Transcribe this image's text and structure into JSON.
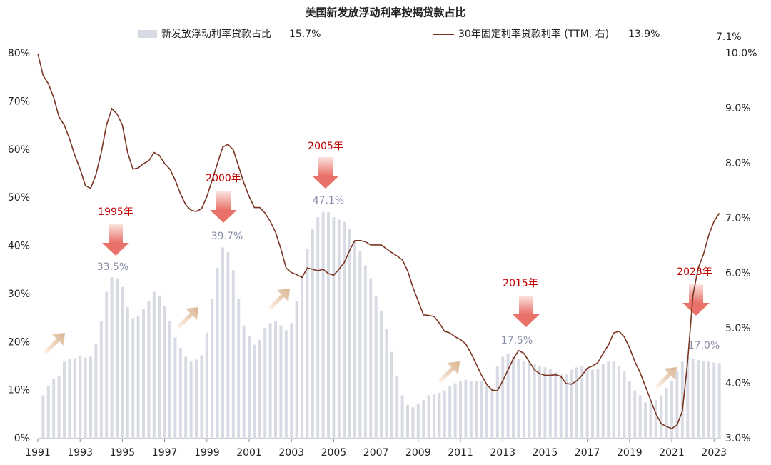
{
  "chart_data": {
    "type": "bar_line",
    "title": "美国新发放浮动利率按揭贷款占比",
    "legend_extra": [
      "15.7%",
      "13.9%",
      "7.1%"
    ],
    "annotations": [
      "1995年",
      "33.5%",
      "2000年",
      "39.7%",
      "2005年",
      "47.1%",
      "2015年",
      "17.5%",
      "2023年",
      "17.0%"
    ],
    "x": [
      1991,
      1991.25,
      1991.5,
      1991.75,
      1992,
      1992.25,
      1992.5,
      1992.75,
      1993,
      1993.25,
      1993.5,
      1993.75,
      1994,
      1994.25,
      1994.5,
      1994.75,
      1995,
      1995.25,
      1995.5,
      1995.75,
      1996,
      1996.25,
      1996.5,
      1996.75,
      1997,
      1997.25,
      1997.5,
      1997.75,
      1998,
      1998.25,
      1998.5,
      1998.75,
      1999,
      1999.25,
      1999.5,
      1999.75,
      2000,
      2000.25,
      2000.5,
      2000.75,
      2001,
      2001.25,
      2001.5,
      2001.75,
      2002,
      2002.25,
      2002.5,
      2002.75,
      2003,
      2003.25,
      2003.5,
      2003.75,
      2004,
      2004.25,
      2004.5,
      2004.75,
      2005,
      2005.25,
      2005.5,
      2005.75,
      2006,
      2006.25,
      2006.5,
      2006.75,
      2007,
      2007.25,
      2007.5,
      2007.75,
      2008,
      2008.25,
      2008.5,
      2008.75,
      2009,
      2009.25,
      2009.5,
      2009.75,
      2010,
      2010.25,
      2010.5,
      2010.75,
      2011,
      2011.25,
      2011.5,
      2011.75,
      2012,
      2012.25,
      2012.5,
      2012.75,
      2013,
      2013.25,
      2013.5,
      2013.75,
      2014,
      2014.25,
      2014.5,
      2014.75,
      2015,
      2015.25,
      2015.5,
      2015.75,
      2016,
      2016.25,
      2016.5,
      2016.75,
      2017,
      2017.25,
      2017.5,
      2017.75,
      2018,
      2018.25,
      2018.5,
      2018.75,
      2019,
      2019.25,
      2019.5,
      2019.75,
      2020,
      2020.25,
      2020.5,
      2020.75,
      2021,
      2021.25,
      2021.5,
      2021.75,
      2022,
      2022.25,
      2022.5,
      2022.75,
      2023,
      2023.25
    ],
    "series": [
      {
        "name": "新发放浮动利率贷款占比",
        "type": "bar",
        "color": "#d9dbe4",
        "values": [
          null,
          9,
          11,
          12.5,
          13,
          16,
          16.5,
          16.7,
          17.3,
          16.8,
          17,
          19.7,
          24.5,
          30.5,
          33.5,
          33.3,
          31.5,
          27.3,
          25,
          25.5,
          27,
          28.5,
          30.5,
          29.7,
          27.5,
          24.5,
          21,
          18.8,
          17,
          16,
          16.4,
          17.3,
          22,
          29,
          35.5,
          39.7,
          38.7,
          35,
          29,
          23.5,
          21.3,
          19.5,
          20.5,
          23,
          24,
          24.5,
          23.5,
          22.5,
          24,
          28.5,
          34,
          39.5,
          43.5,
          46,
          47.1,
          47,
          46,
          45.5,
          45,
          43.5,
          41,
          39,
          36,
          33.3,
          29.5,
          26.5,
          22.7,
          18,
          13,
          9,
          7,
          6.5,
          7.3,
          8,
          9,
          9.2,
          9.5,
          10,
          11,
          11.5,
          12,
          12.2,
          12,
          12,
          12,
          11,
          10.5,
          15,
          17,
          17.5,
          17,
          16.5,
          16,
          16,
          15.5,
          15,
          14.8,
          14.5,
          13.8,
          13.5,
          13.3,
          14.3,
          14.8,
          15,
          14.7,
          14.3,
          14.5,
          15.5,
          16,
          16,
          15,
          14,
          12,
          10,
          9,
          7.5,
          7.5,
          8,
          9,
          10.5,
          12,
          14,
          16,
          17,
          16.5,
          16.3,
          16.1,
          16,
          15.8,
          15.7
        ]
      },
      {
        "name": "30年固定利率贷款利率 (TTM, 右)",
        "type": "line",
        "axis": "y2",
        "color": "#7a3422",
        "values": [
          10.0,
          9.6,
          9.45,
          9.2,
          8.85,
          8.7,
          8.45,
          8.15,
          7.9,
          7.6,
          7.55,
          7.8,
          8.2,
          8.7,
          9.0,
          8.9,
          8.7,
          8.2,
          7.9,
          7.92,
          8.0,
          8.05,
          8.2,
          8.15,
          8.0,
          7.9,
          7.7,
          7.45,
          7.25,
          7.15,
          7.13,
          7.18,
          7.4,
          7.7,
          8.0,
          8.3,
          8.35,
          8.25,
          7.95,
          7.65,
          7.4,
          7.2,
          7.2,
          7.1,
          6.95,
          6.75,
          6.45,
          6.1,
          6.02,
          5.98,
          5.93,
          6.1,
          6.08,
          6.05,
          6.08,
          6.0,
          5.97,
          6.08,
          6.2,
          6.42,
          6.6,
          6.6,
          6.58,
          6.52,
          6.52,
          6.52,
          6.45,
          6.38,
          6.32,
          6.25,
          6.05,
          5.75,
          5.5,
          5.25,
          5.24,
          5.22,
          5.1,
          4.95,
          4.92,
          4.85,
          4.8,
          4.72,
          4.55,
          4.35,
          4.15,
          3.98,
          3.88,
          3.87,
          4.05,
          4.25,
          4.45,
          4.6,
          4.55,
          4.4,
          4.25,
          4.18,
          4.15,
          4.15,
          4.16,
          4.13,
          4.0,
          3.99,
          4.05,
          4.15,
          4.28,
          4.32,
          4.38,
          4.55,
          4.7,
          4.92,
          4.95,
          4.85,
          4.65,
          4.4,
          4.2,
          3.95,
          3.7,
          3.45,
          3.27,
          3.22,
          3.18,
          3.25,
          3.5,
          4.4,
          5.6,
          6.1,
          6.35,
          6.7,
          6.95,
          7.1
        ]
      }
    ],
    "xlim": [
      1991,
      2023.33
    ],
    "xticks": [
      1991,
      1993,
      1995,
      1997,
      1999,
      2001,
      2003,
      2005,
      2007,
      2009,
      2011,
      2013,
      2015,
      2017,
      2019,
      2021,
      2023
    ],
    "ylim": [
      0,
      80
    ],
    "yticks": [
      {
        "value": 0,
        "label": "0%"
      },
      {
        "value": 10,
        "label": "10%"
      },
      {
        "value": 20,
        "label": "20%"
      },
      {
        "value": 30,
        "label": "30%"
      },
      {
        "value": 40,
        "label": "40%"
      },
      {
        "value": 50,
        "label": "50%"
      },
      {
        "value": 60,
        "label": "60%"
      },
      {
        "value": 70,
        "label": "70%"
      },
      {
        "value": 80,
        "label": "80%"
      }
    ],
    "y2lim": [
      3,
      10
    ],
    "y2ticks": [
      {
        "value": 3,
        "label": "3.0%"
      },
      {
        "value": 4,
        "label": "4.0%"
      },
      {
        "value": 5,
        "label": "5.0%"
      },
      {
        "value": 6,
        "label": "6.0%"
      },
      {
        "value": 7,
        "label": "7.0%"
      },
      {
        "value": 8,
        "label": "8.0%"
      },
      {
        "value": 9,
        "label": "9.0%"
      },
      {
        "value": 10,
        "label": "10.0%"
      }
    ],
    "grid": false
  }
}
